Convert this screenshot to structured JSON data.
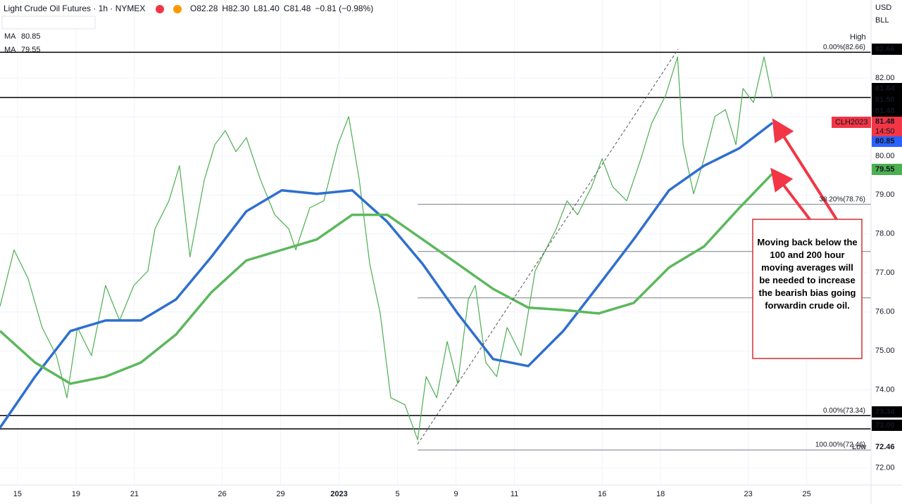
{
  "chart_data": {
    "type": "line",
    "title": "Light Crude Oil Futures · 1h · NYMEX",
    "ohlc": [
      "O82.28",
      "H82.30",
      "L81.40",
      "C81.48",
      "−0.81 (−0.98%)"
    ],
    "indicators": [
      {
        "name": "MA",
        "label": "80.85",
        "color": "#2962ff"
      },
      {
        "name": "MA",
        "label": "79.55",
        "color": "#4caf50"
      }
    ],
    "currency": "USD",
    "unit": "BLL",
    "annotation": "Moving back below the 100 and 200 hour moving averages will be needed to increase the bearish bias going forwardin crude oil.",
    "high_label": "High",
    "low_label": "Low",
    "symbol_tag": {
      "name": "CLH2023",
      "value": 81.48,
      "label": "81.48",
      "time": "14:50"
    },
    "xlim": [
      -0.6,
      29.2
    ],
    "ylim": [
      71.56,
      84.0
    ],
    "xticks": [
      {
        "value": 0,
        "label": "15"
      },
      {
        "value": 2,
        "label": "19"
      },
      {
        "value": 4,
        "label": "21"
      },
      {
        "value": 7,
        "label": "26"
      },
      {
        "value": 9,
        "label": "29"
      },
      {
        "value": 11,
        "label": "2023"
      },
      {
        "value": 13,
        "label": "5"
      },
      {
        "value": 15,
        "label": "9"
      },
      {
        "value": 17,
        "label": "11"
      },
      {
        "value": 20,
        "label": "16"
      },
      {
        "value": 22,
        "label": "18"
      },
      {
        "value": 25,
        "label": "23"
      },
      {
        "value": 27,
        "label": "25"
      }
    ],
    "yticks": [
      {
        "value": 72,
        "label": "72.00"
      },
      {
        "value": 73,
        "label": "73.00"
      },
      {
        "value": 74,
        "label": "74.00"
      },
      {
        "value": 75,
        "label": "75.00"
      },
      {
        "value": 76,
        "label": "76.00"
      },
      {
        "value": 77,
        "label": "77.00"
      },
      {
        "value": 78,
        "label": "78.00"
      },
      {
        "value": 79,
        "label": "79.00"
      },
      {
        "value": 80,
        "label": "80.00"
      },
      {
        "value": 81,
        "label": "81.00"
      },
      {
        "value": 82,
        "label": "82.00"
      }
    ],
    "series": [
      {
        "name": "CLH2023",
        "color": "#4caf50",
        "x": [
          -0.6,
          -0.12,
          0.36,
          0.84,
          1.33,
          1.69,
          2.05,
          2.53,
          3.01,
          3.49,
          3.98,
          4.46,
          4.7,
          5.18,
          5.54,
          5.9,
          6.39,
          6.75,
          7.11,
          7.47,
          7.83,
          8.31,
          8.8,
          9.28,
          9.52,
          10.0,
          10.48,
          10.96,
          11.33,
          11.69,
          12.05,
          12.41,
          12.77,
          13.25,
          13.69,
          13.98,
          14.34,
          14.7,
          15.06,
          15.42,
          15.66,
          16.02,
          16.39,
          16.75,
          17.23,
          17.71,
          18.07,
          18.43,
          18.8,
          19.16,
          19.64,
          20.0,
          20.36,
          20.84,
          21.33,
          21.69,
          22.17,
          22.58,
          22.77,
          23.13,
          23.49,
          23.86,
          24.22,
          24.58,
          24.82,
          25.18,
          25.54,
          25.83
        ],
        "values": [
          76.14,
          77.59,
          76.86,
          75.6,
          74.88,
          73.8,
          75.6,
          74.88,
          76.68,
          75.78,
          76.68,
          77.05,
          78.13,
          78.85,
          79.75,
          77.41,
          79.39,
          80.29,
          80.65,
          80.11,
          80.47,
          79.39,
          78.49,
          78.13,
          77.59,
          78.67,
          78.85,
          80.29,
          81.01,
          79.39,
          77.23,
          75.96,
          73.8,
          73.62,
          72.72,
          74.34,
          73.8,
          75.24,
          74.16,
          76.32,
          76.68,
          74.7,
          74.34,
          75.6,
          74.88,
          77.05,
          77.59,
          78.13,
          78.85,
          78.49,
          79.21,
          79.93,
          79.21,
          78.85,
          79.93,
          80.83,
          81.55,
          82.54,
          80.29,
          79.03,
          79.93,
          81.01,
          81.19,
          80.29,
          81.73,
          81.37,
          82.54,
          81.48
        ]
      },
      {
        "name": "MA",
        "color": "#2f6fcf",
        "x": [
          -0.6,
          0.6,
          1.81,
          3.01,
          4.22,
          5.42,
          6.63,
          7.83,
          9.04,
          10.24,
          11.45,
          12.65,
          13.86,
          15.06,
          16.27,
          17.47,
          18.67,
          19.88,
          21.08,
          22.29,
          23.49,
          24.7,
          25.83
        ],
        "values": [
          73.03,
          74.34,
          75.51,
          75.78,
          75.78,
          76.32,
          77.41,
          78.58,
          79.12,
          79.03,
          79.12,
          78.31,
          77.23,
          75.96,
          74.79,
          74.61,
          75.51,
          76.68,
          77.86,
          79.12,
          79.75,
          80.2,
          80.85
        ]
      },
      {
        "name": "MA",
        "color": "#5cb85c",
        "x": [
          -0.6,
          0.6,
          1.81,
          3.01,
          4.22,
          5.42,
          6.63,
          7.83,
          9.04,
          10.24,
          11.45,
          12.65,
          13.86,
          15.06,
          16.27,
          17.47,
          18.67,
          19.88,
          21.08,
          22.29,
          23.49,
          24.7,
          25.83
        ],
        "values": [
          75.51,
          74.7,
          74.16,
          74.34,
          74.7,
          75.42,
          76.5,
          77.32,
          77.59,
          77.86,
          78.49,
          78.49,
          77.86,
          77.23,
          76.59,
          76.11,
          76.05,
          75.96,
          76.23,
          77.14,
          77.68,
          78.67,
          79.55
        ]
      }
    ],
    "hlines": [
      82.66,
      81.5,
      73.34,
      73.0
    ],
    "fib_levels": [
      {
        "value": 82.66,
        "label": "0.00%(82.66)"
      },
      {
        "value": 78.76,
        "label": "38.20%(78.76)"
      },
      {
        "value": 77.55
      },
      {
        "value": 76.36
      },
      {
        "value": 73.34,
        "label": "0.00%(73.34)"
      },
      {
        "value": 72.46,
        "label": "100.00%(72.46)"
      }
    ],
    "price_tags": [
      {
        "value": 82.66,
        "label": "82.66",
        "color": "#000"
      },
      {
        "value": 81.64,
        "label": "81.64",
        "color": "#000"
      },
      {
        "value": 81.5,
        "label": "81.50",
        "color": "#000"
      },
      {
        "value": 81.48,
        "label": "81.48",
        "color": "#000"
      },
      {
        "value": 80.85,
        "label": "80.85",
        "color": "#2962ff"
      },
      {
        "value": 79.55,
        "label": "79.55",
        "color": "#4caf50"
      },
      {
        "value": 73.34,
        "label": "73.34",
        "color": "#000"
      },
      {
        "value": 73.0,
        "label": "73.00",
        "color": "#000"
      },
      {
        "value": 72.46,
        "label": "72.46",
        "color": "#fff"
      }
    ],
    "grid": true
  }
}
